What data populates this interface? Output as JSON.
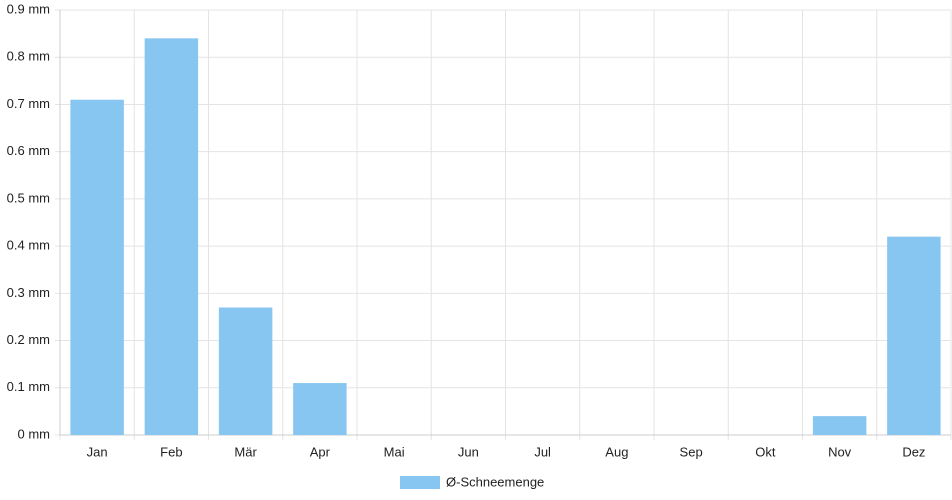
{
  "chart_data": {
    "type": "bar",
    "categories": [
      "Jan",
      "Feb",
      "Mär",
      "Apr",
      "Mai",
      "Jun",
      "Jul",
      "Aug",
      "Sep",
      "Okt",
      "Nov",
      "Dez"
    ],
    "series": [
      {
        "name": "Ø-Schneemenge",
        "color": "#88c6f2",
        "values": [
          0.71,
          0.84,
          0.27,
          0.11,
          0,
          0,
          0,
          0,
          0,
          0,
          0.04,
          0.42
        ]
      }
    ],
    "ylim": [
      0,
      0.9
    ],
    "yticks": [
      {
        "value": 0,
        "label": "0 mm"
      },
      {
        "value": 0.1,
        "label": "0.1 mm"
      },
      {
        "value": 0.2,
        "label": "0.2 mm"
      },
      {
        "value": 0.3,
        "label": "0.3 mm"
      },
      {
        "value": 0.4,
        "label": "0.4 mm"
      },
      {
        "value": 0.5,
        "label": "0.5 mm"
      },
      {
        "value": 0.6,
        "label": "0.6 mm"
      },
      {
        "value": 0.7,
        "label": "0.7 mm"
      },
      {
        "value": 0.8,
        "label": "0.8 mm"
      },
      {
        "value": 0.9,
        "label": "0.9 mm"
      }
    ],
    "grid": true,
    "legend": "bottom"
  }
}
